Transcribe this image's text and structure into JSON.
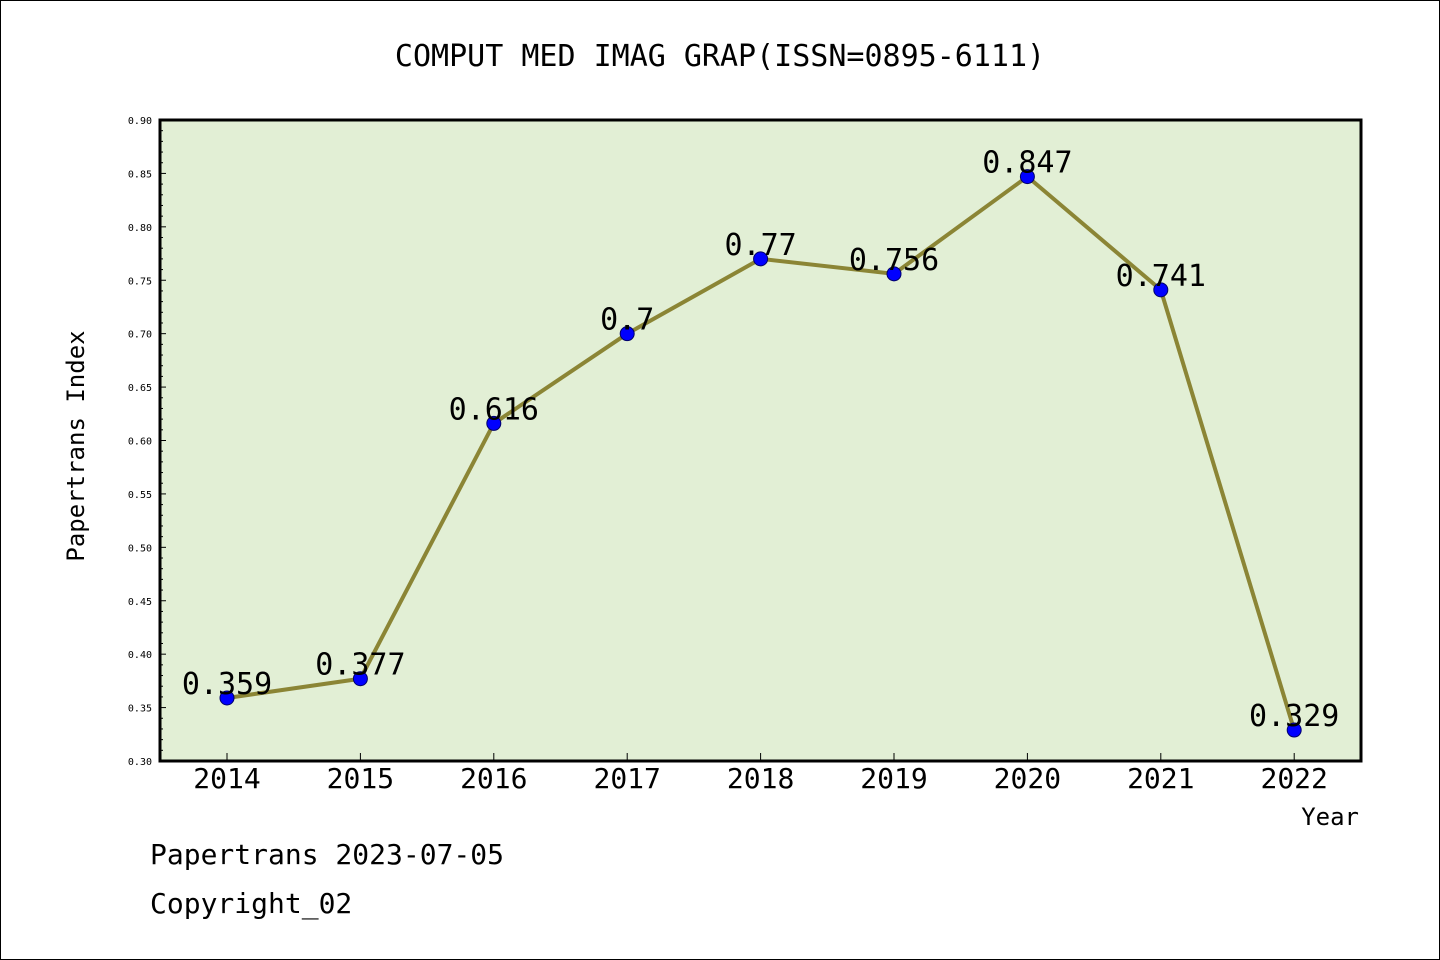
{
  "chart_data": {
    "type": "line",
    "title": "COMPUT MED IMAG GRAP(ISSN=0895-6111)",
    "xlabel": "Year",
    "ylabel": "Papertrans Index",
    "categories": [
      "2014",
      "2015",
      "2016",
      "2017",
      "2018",
      "2019",
      "2020",
      "2021",
      "2022"
    ],
    "values": [
      0.359,
      0.377,
      0.616,
      0.7,
      0.77,
      0.756,
      0.847,
      0.741,
      0.329
    ],
    "data_labels": [
      "0.359",
      "0.377",
      "0.616",
      "0.7",
      "0.77",
      "0.756",
      "0.847",
      "0.741",
      "0.329"
    ],
    "ylim": [
      0.3,
      0.9
    ],
    "yticks": [
      "0.30",
      "0.35",
      "0.40",
      "0.45",
      "0.50",
      "0.55",
      "0.60",
      "0.65",
      "0.70",
      "0.75",
      "0.80",
      "0.85",
      "0.90"
    ],
    "grid": false,
    "line_color": "#8b8535",
    "marker_color": "#0000ff",
    "plot_background": "#e2efd5"
  },
  "footer": {
    "line1": "Papertrans 2023-07-05",
    "line2": "Copyright_02"
  }
}
